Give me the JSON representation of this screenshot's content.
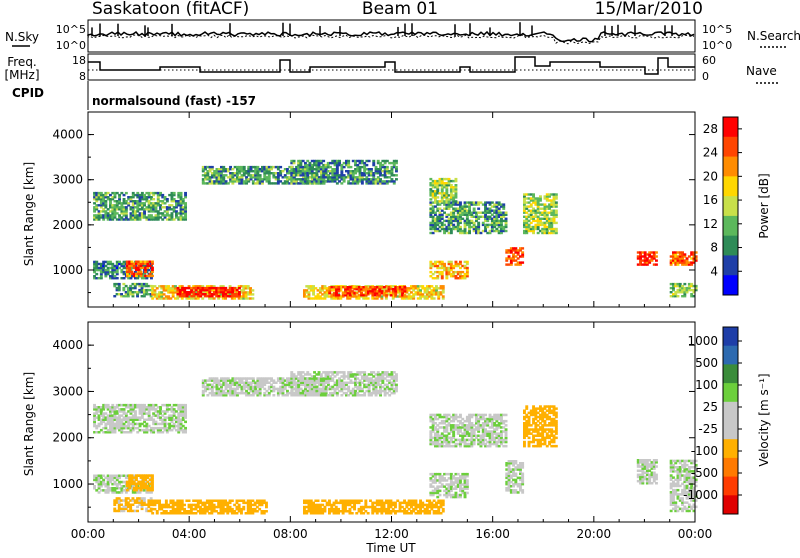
{
  "header": {
    "station": "Saskatoon (fitACF)",
    "beam": "Beam 01",
    "date": "15/Mar/2010"
  },
  "left_labels": {
    "nsky": "N.Sky",
    "freq_line1": "Freq.",
    "freq_line2": "[MHz]",
    "cpid": "CPID"
  },
  "right_labels": {
    "nsearch": "N.Search",
    "nave": "Nave"
  },
  "cpid_text": "normalsound (fast) -157",
  "noise_axis": {
    "left_ticks": [
      "10^5",
      "10^0"
    ],
    "right_ticks": [
      "10^5",
      "10^0"
    ]
  },
  "freq_axis": {
    "left_ticks": [
      "18",
      "8"
    ],
    "right_ticks": [
      "60",
      "0"
    ]
  },
  "colors": {
    "power_scale": [
      "#0000ff",
      "#1f3fa8",
      "#2e8b57",
      "#5cb85c",
      "#c8e04a",
      "#ffd700",
      "#ff8c00",
      "#ff4500",
      "#ff0000"
    ],
    "velocity_scale": [
      "#1e3ea8",
      "#2d6ab0",
      "#3a8c3a",
      "#6ccf3c",
      "#c8c8c8",
      "#c8c8c8",
      "#ffb000",
      "#ff7a00",
      "#ff3c00",
      "#e00000"
    ]
  },
  "chart_data": [
    {
      "type": "heatmap",
      "panel": "power",
      "ylabel": "Slant Range [km]",
      "y_ticks": [
        "1000",
        "2000",
        "3000",
        "4000"
      ],
      "ylim": [
        180,
        4500
      ],
      "x_ticks": [
        "00:00",
        "04:00",
        "08:00",
        "12:00",
        "16:00",
        "20:00",
        "00:00"
      ],
      "xlim_hours": [
        0,
        24
      ],
      "colorbar_label": "Power [dB]",
      "colorbar_ticks": [
        "28",
        "24",
        "20",
        "16",
        "12",
        "8",
        "4"
      ],
      "colorbar_range": [
        0,
        30
      ],
      "regions": [
        {
          "t": [
            0.2,
            3.8
          ],
          "r": [
            2100,
            2700
          ],
          "v": 10
        },
        {
          "t": [
            0.2,
            2.5
          ],
          "r": [
            800,
            1200
          ],
          "v": 8
        },
        {
          "t": [
            1.5,
            2.5
          ],
          "r": [
            850,
            1200
          ],
          "v": 24
        },
        {
          "t": [
            1.0,
            2.5
          ],
          "r": [
            400,
            700
          ],
          "v": 10
        },
        {
          "t": [
            2.5,
            6.5
          ],
          "r": [
            350,
            650
          ],
          "v": 18
        },
        {
          "t": [
            3.5,
            6.0
          ],
          "r": [
            400,
            600
          ],
          "v": 28
        },
        {
          "t": [
            4.5,
            9.5
          ],
          "r": [
            2900,
            3300
          ],
          "v": 10
        },
        {
          "t": [
            8.0,
            12.2
          ],
          "r": [
            2900,
            3400
          ],
          "v": 9
        },
        {
          "t": [
            8.5,
            14.0
          ],
          "r": [
            350,
            650
          ],
          "v": 18
        },
        {
          "t": [
            9.5,
            12.5
          ],
          "r": [
            420,
            620
          ],
          "v": 26
        },
        {
          "t": [
            13.5,
            16.5
          ],
          "r": [
            1800,
            2500
          ],
          "v": 10
        },
        {
          "t": [
            13.5,
            14.5
          ],
          "r": [
            2500,
            3000
          ],
          "v": 14
        },
        {
          "t": [
            13.5,
            15.0
          ],
          "r": [
            800,
            1200
          ],
          "v": 20
        },
        {
          "t": [
            16.5,
            17.2
          ],
          "r": [
            1100,
            1500
          ],
          "v": 25
        },
        {
          "t": [
            17.2,
            18.5
          ],
          "r": [
            1800,
            2700
          ],
          "v": 14
        },
        {
          "t": [
            21.7,
            22.5
          ],
          "r": [
            1100,
            1400
          ],
          "v": 26
        },
        {
          "t": [
            23.0,
            24.0
          ],
          "r": [
            1100,
            1400
          ],
          "v": 24
        },
        {
          "t": [
            23.0,
            24.0
          ],
          "r": [
            400,
            700
          ],
          "v": 12
        }
      ]
    },
    {
      "type": "heatmap",
      "panel": "velocity",
      "xlabel": "Time UT",
      "ylabel": "Slant Range [km]",
      "y_ticks": [
        "1000",
        "2000",
        "3000",
        "4000"
      ],
      "ylim": [
        180,
        4500
      ],
      "x_ticks": [
        "00:00",
        "04:00",
        "08:00",
        "12:00",
        "16:00",
        "20:00",
        "00:00"
      ],
      "xlim_hours": [
        0,
        24
      ],
      "colorbar_label": "Velocity [m s⁻¹]",
      "colorbar_ticks": [
        "1000",
        "500",
        "100",
        "25",
        "-25",
        "-100",
        "-500",
        "-1000"
      ],
      "colorbar_range": [
        -1000,
        1000
      ],
      "regions": [
        {
          "t": [
            0.2,
            3.8
          ],
          "r": [
            2100,
            2700
          ],
          "v": 0
        },
        {
          "t": [
            0.2,
            2.5
          ],
          "r": [
            800,
            1200
          ],
          "v": 0
        },
        {
          "t": [
            1.5,
            2.5
          ],
          "r": [
            850,
            1200
          ],
          "v": -150
        },
        {
          "t": [
            1.0,
            2.5
          ],
          "r": [
            400,
            700
          ],
          "v": -100
        },
        {
          "t": [
            2.5,
            7.0
          ],
          "r": [
            350,
            650
          ],
          "v": -150
        },
        {
          "t": [
            4.5,
            9.5
          ],
          "r": [
            2900,
            3300
          ],
          "v": 0
        },
        {
          "t": [
            8.0,
            12.2
          ],
          "r": [
            2900,
            3400
          ],
          "v": 0
        },
        {
          "t": [
            8.5,
            14.0
          ],
          "r": [
            350,
            650
          ],
          "v": -150
        },
        {
          "t": [
            13.5,
            16.5
          ],
          "r": [
            1800,
            2500
          ],
          "v": 0
        },
        {
          "t": [
            13.5,
            15.0
          ],
          "r": [
            700,
            1200
          ],
          "v": 0
        },
        {
          "t": [
            16.5,
            17.2
          ],
          "r": [
            800,
            1500
          ],
          "v": 0
        },
        {
          "t": [
            17.2,
            18.5
          ],
          "r": [
            1800,
            2700
          ],
          "v": -200
        },
        {
          "t": [
            21.7,
            22.5
          ],
          "r": [
            1000,
            1500
          ],
          "v": 0
        },
        {
          "t": [
            23.0,
            24.0
          ],
          "r": [
            400,
            1500
          ],
          "v": 0
        }
      ]
    }
  ],
  "range_axis_label": "Slant Range [km]"
}
